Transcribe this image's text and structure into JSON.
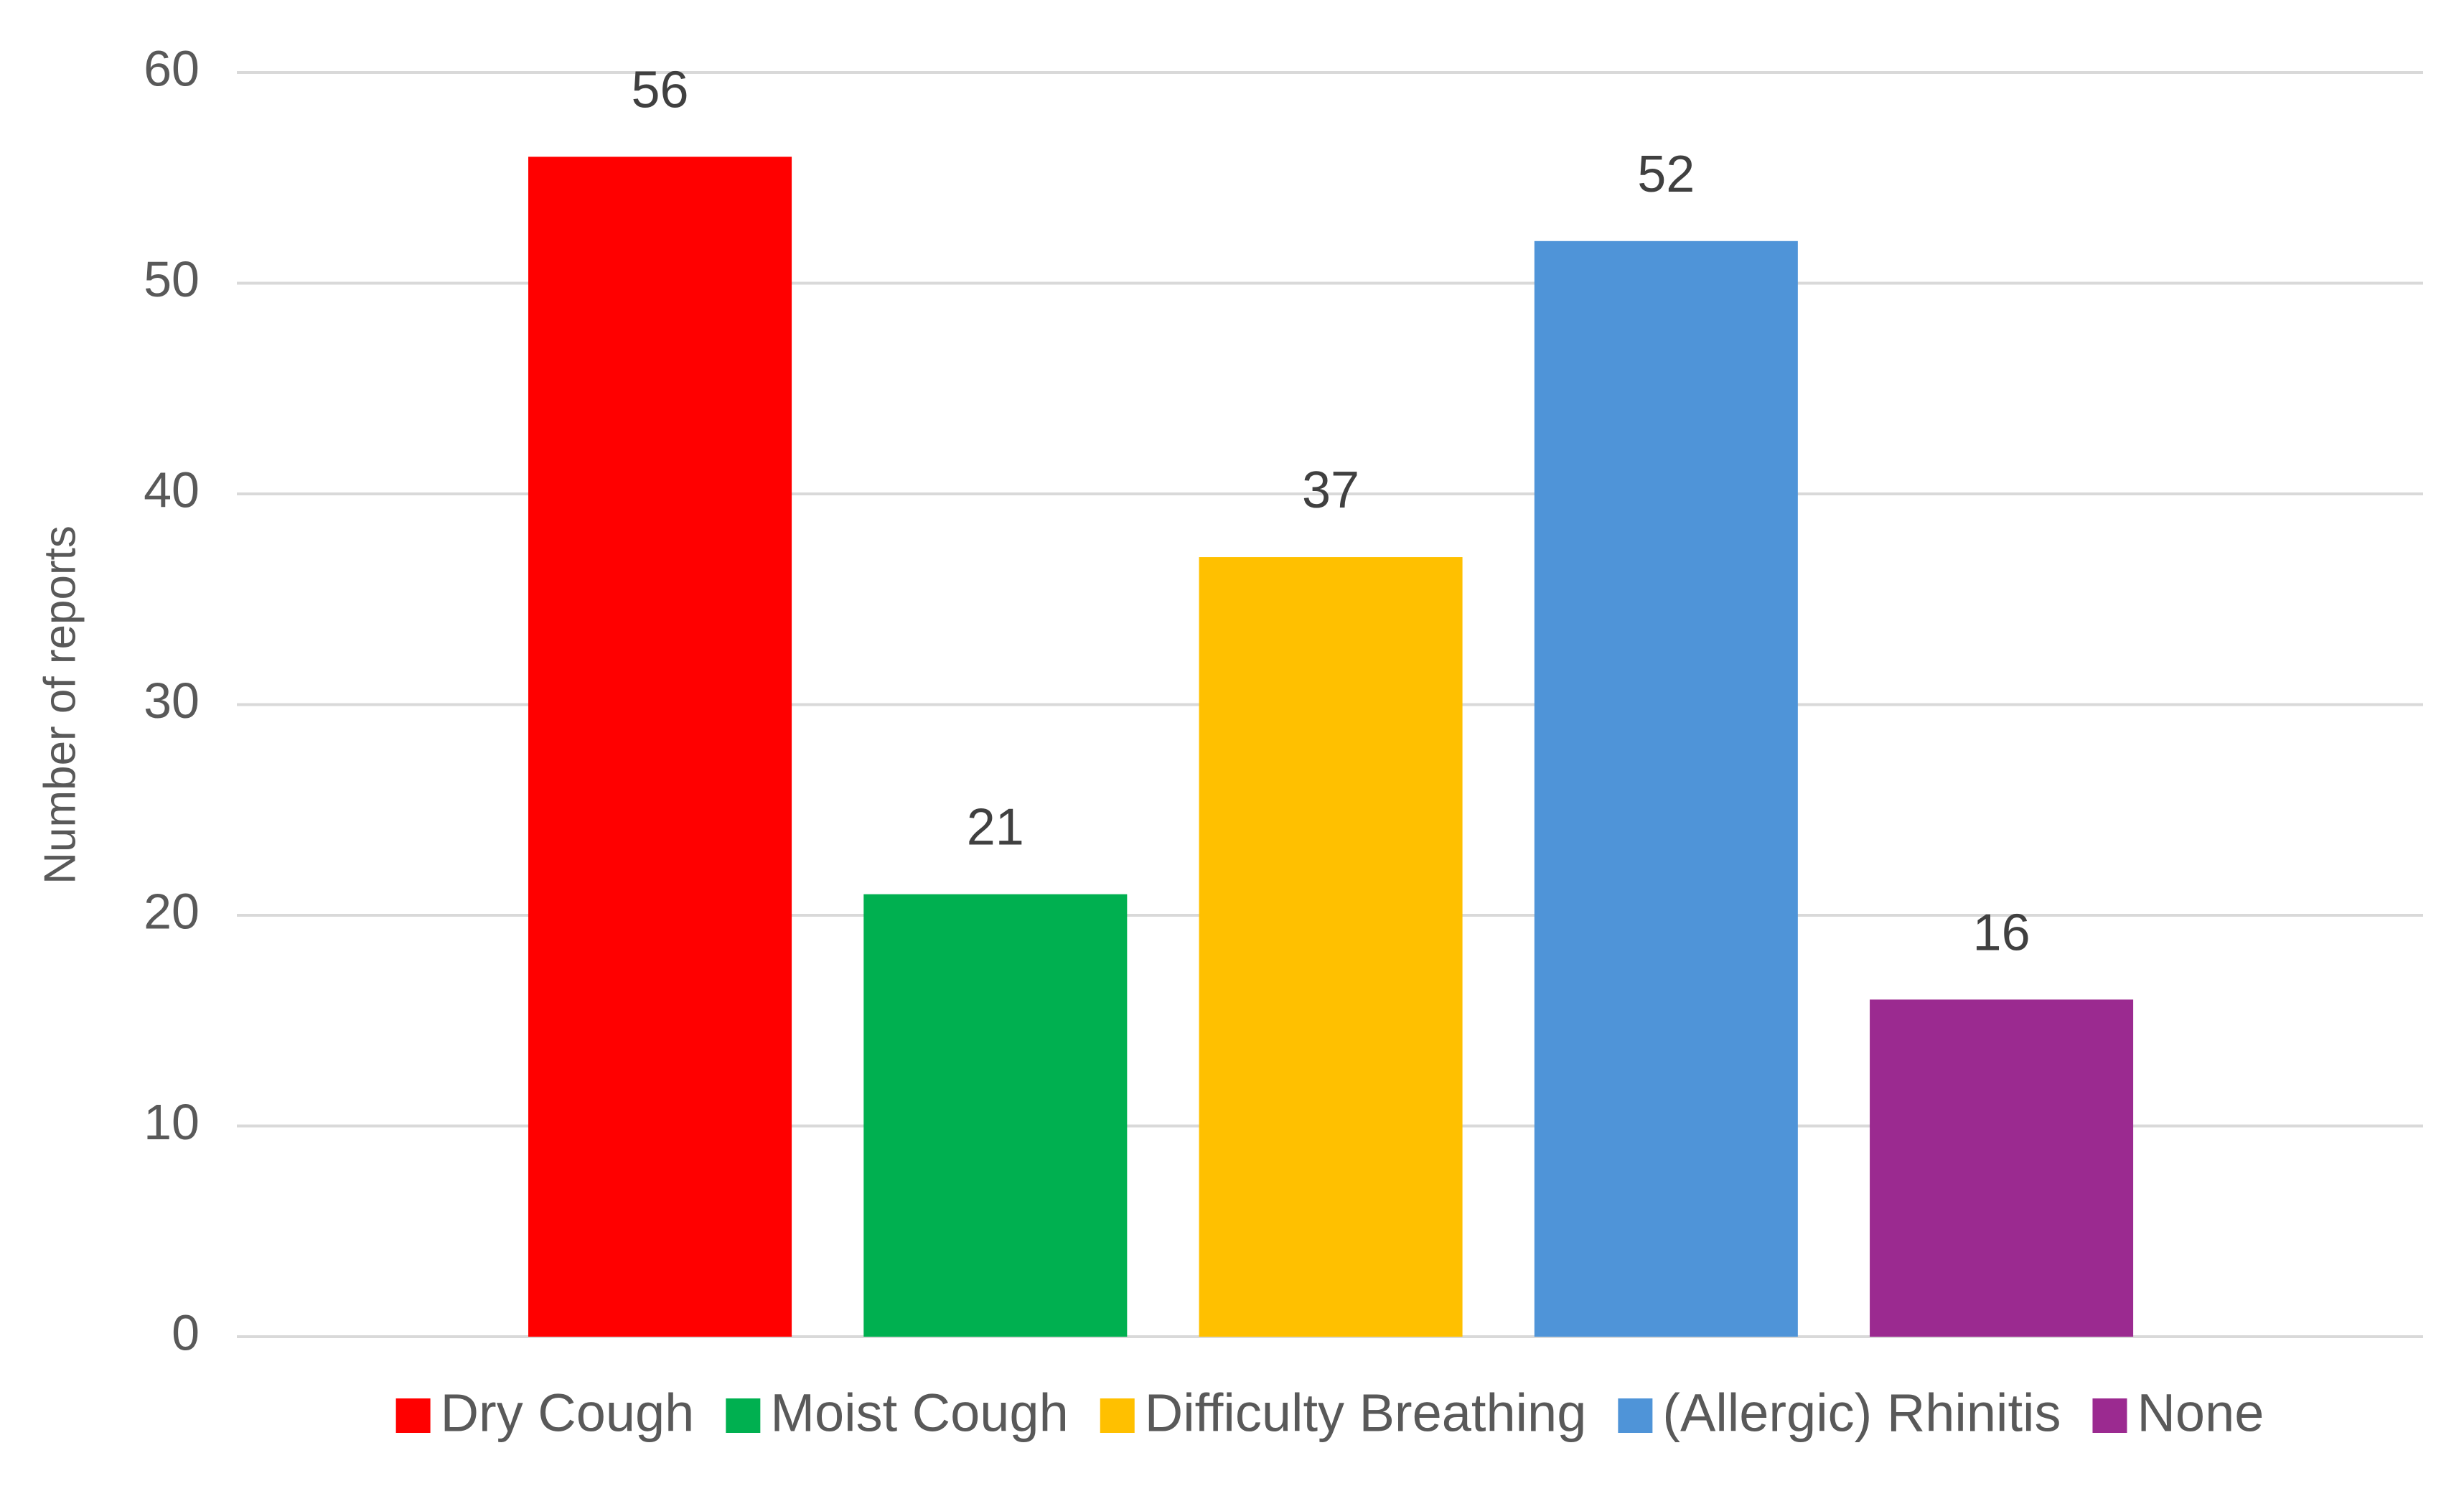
{
  "chart_data": {
    "type": "bar",
    "y_axis_label": "Number of reports",
    "categories": [
      null
    ],
    "series": [
      {
        "name": "Dry Cough",
        "color": "#ff0000",
        "values": [
          56
        ]
      },
      {
        "name": "Moist Cough",
        "color": "#00b050",
        "values": [
          21
        ]
      },
      {
        "name": "Difficulty Breathing",
        "color": "#ffc000",
        "values": [
          37
        ]
      },
      {
        "name": "(Allergic) Rhinitis",
        "color": "#4f94d8",
        "values": [
          52
        ]
      },
      {
        "name": "None",
        "color": "#9b2a90",
        "values": [
          16
        ]
      }
    ],
    "ylim": [
      0,
      60
    ],
    "yticks": [
      0,
      10,
      20,
      30,
      40,
      50,
      60
    ],
    "grid": true,
    "legend": "bottom",
    "data_labels": true
  }
}
